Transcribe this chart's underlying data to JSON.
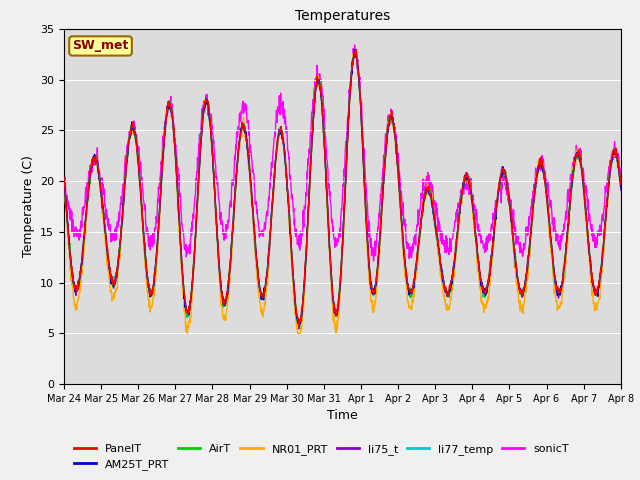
{
  "title": "Temperatures",
  "xlabel": "Time",
  "ylabel": "Temperature (C)",
  "ylim": [
    0,
    35
  ],
  "yticks": [
    0,
    5,
    10,
    15,
    20,
    25,
    30,
    35
  ],
  "fig_bg_color": "#f0f0f0",
  "plot_bg_color": "#dcdcdc",
  "series_colors": {
    "PanelT": "#ff0000",
    "AM25T_PRT": "#0000cc",
    "AirT": "#00cc00",
    "NR01_PRT": "#ffaa00",
    "li75_t": "#8800cc",
    "li77_temp": "#00cccc",
    "sonicT": "#ff00ff"
  },
  "legend_label": "SW_met",
  "legend_box_bg": "#ffff99",
  "legend_box_edge": "#996600",
  "tick_labels": [
    "Mar 24",
    "Mar 25",
    "Mar 26",
    "Mar 27",
    "Mar 28",
    "Mar 29",
    "Mar 30",
    "Mar 31",
    "Apr 1",
    "Apr 2",
    "Apr 3",
    "Apr 4",
    "Apr 5",
    "Apr 6",
    "Apr 7",
    "Apr 8"
  ],
  "grid_color": "#ffffff",
  "linewidth": 1.0,
  "day_maxes": [
    24,
    22,
    26,
    28,
    28,
    25,
    25,
    31,
    33,
    25,
    18,
    21,
    21,
    22,
    23
  ],
  "day_mins": [
    9,
    10,
    10,
    7,
    7,
    10,
    6,
    6,
    9,
    9,
    9,
    9,
    9,
    9,
    9
  ],
  "sonic_day_maxes": [
    22,
    22,
    26,
    28,
    28,
    27,
    28,
    31,
    33,
    25,
    19,
    20,
    20,
    22,
    23
  ],
  "sonic_day_mins": [
    15,
    14,
    15,
    12,
    15,
    15,
    14,
    14,
    13,
    13,
    13,
    14,
    13,
    14,
    14
  ]
}
